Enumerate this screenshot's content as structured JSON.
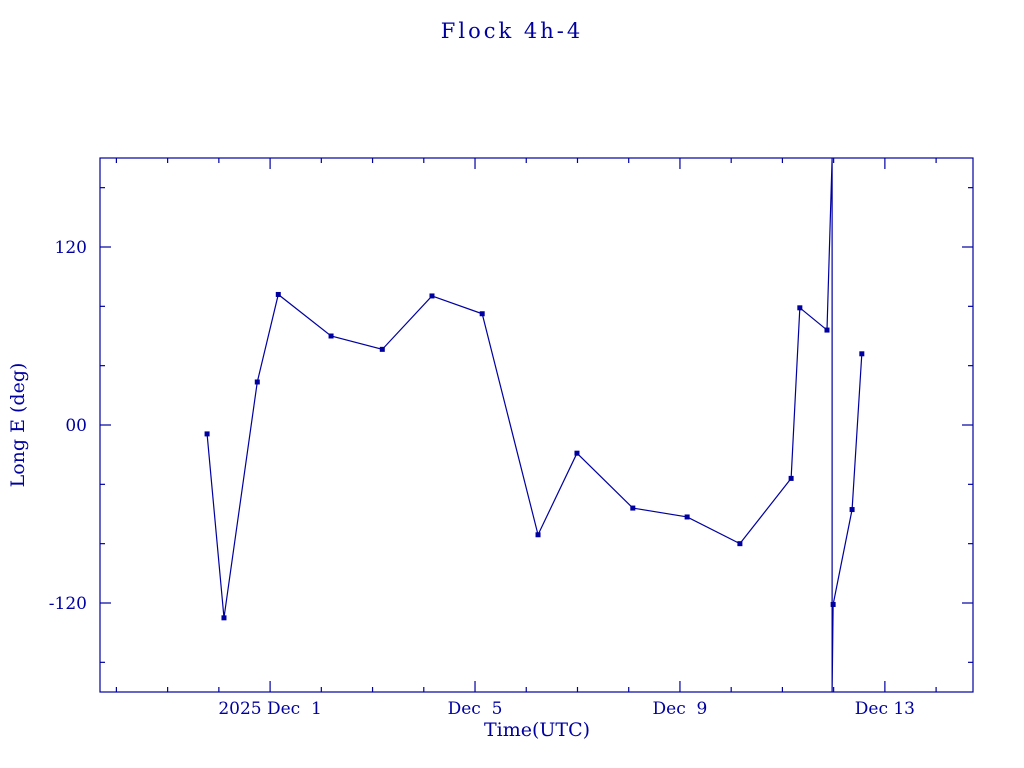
{
  "page": {
    "background": "#ffffff"
  },
  "chart_data": {
    "type": "line",
    "title": "Flock 4h-4",
    "xlabel": "Time(UTC)",
    "ylabel": "Long E (deg)",
    "color": "#0000a0",
    "marker": "square",
    "grid": false,
    "legend": "none",
    "ylim": [
      -180,
      180
    ],
    "yticks": [
      {
        "value": -120,
        "label": "-120"
      },
      {
        "value": 0,
        "label": "00"
      },
      {
        "value": 120,
        "label": "120"
      }
    ],
    "y_minor_step": 40,
    "x_unit": "days since 2025 Dec 1 00:00 UTC",
    "xlim": [
      -3.32,
      13.72
    ],
    "xticks": [
      {
        "day": 0,
        "label": "2025 Dec  1"
      },
      {
        "day": 4,
        "label": "Dec  5"
      },
      {
        "day": 8,
        "label": "Dec  9"
      },
      {
        "day": 12,
        "label": "Dec 13"
      }
    ],
    "x_minor_step": 1,
    "series": [
      {
        "name": "Long E",
        "color": "#0000a0",
        "points": [
          {
            "day": -1.23,
            "value": -6
          },
          {
            "day": -0.9,
            "value": -130
          },
          {
            "day": -0.25,
            "value": 29
          },
          {
            "day": 0.16,
            "value": 88
          },
          {
            "day": 1.19,
            "value": 60
          },
          {
            "day": 2.19,
            "value": 51
          },
          {
            "day": 3.16,
            "value": 87
          },
          {
            "day": 4.14,
            "value": 75
          },
          {
            "day": 5.23,
            "value": -74
          },
          {
            "day": 5.99,
            "value": -19
          },
          {
            "day": 7.08,
            "value": -56
          },
          {
            "day": 8.14,
            "value": -62
          },
          {
            "day": 9.17,
            "value": -80
          },
          {
            "day": 10.17,
            "value": -36
          },
          {
            "day": 10.34,
            "value": 79
          },
          {
            "day": 10.87,
            "value": 64
          },
          {
            "day": 10.97,
            "value": 180,
            "marker": false
          },
          {
            "day": 10.97,
            "value": -180,
            "marker": false
          },
          {
            "day": 10.99,
            "value": -121
          },
          {
            "day": 11.36,
            "value": -57
          },
          {
            "day": 11.55,
            "value": 48
          }
        ]
      }
    ]
  }
}
